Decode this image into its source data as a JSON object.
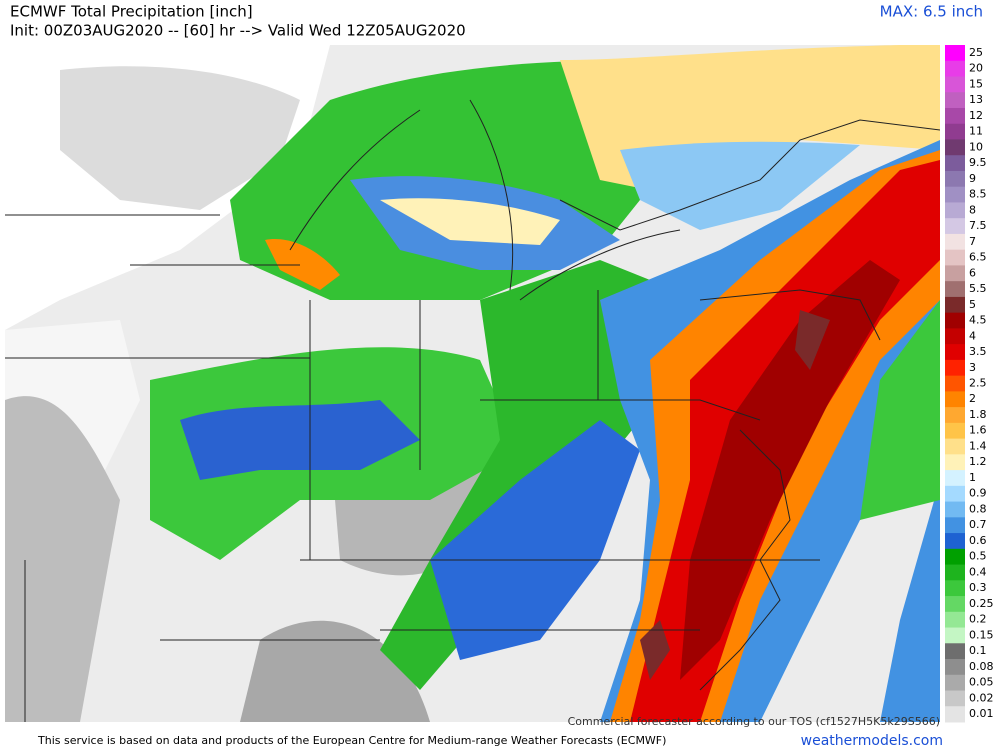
{
  "header": {
    "title": "ECMWF Total Precipitation [inch]",
    "subtitle": "Init: 00Z03AUG2020 -- [60] hr --> Valid Wed 12Z05AUG2020",
    "max": "MAX: 6.5 inch"
  },
  "colorbar": [
    {
      "label": "25",
      "color": "#ff00ff"
    },
    {
      "label": "20",
      "color": "#e83ce8"
    },
    {
      "label": "15",
      "color": "#d855d8"
    },
    {
      "label": "13",
      "color": "#c060c0"
    },
    {
      "label": "12",
      "color": "#a848a8"
    },
    {
      "label": "11",
      "color": "#903c90"
    },
    {
      "label": "10",
      "color": "#703a70"
    },
    {
      "label": "9.5",
      "color": "#7c5c9c"
    },
    {
      "label": "9",
      "color": "#8c78b0"
    },
    {
      "label": "8.5",
      "color": "#a090c4"
    },
    {
      "label": "8",
      "color": "#b8aad4"
    },
    {
      "label": "7.5",
      "color": "#d4c8e4"
    },
    {
      "label": "7",
      "color": "#f2e2e2"
    },
    {
      "label": "6.5",
      "color": "#e4c4c4"
    },
    {
      "label": "6",
      "color": "#c8a0a0"
    },
    {
      "label": "5.5",
      "color": "#a07070"
    },
    {
      "label": "5",
      "color": "#7a2a2a"
    },
    {
      "label": "4.5",
      "color": "#a00000"
    },
    {
      "label": "4",
      "color": "#c40000"
    },
    {
      "label": "3.5",
      "color": "#e00000"
    },
    {
      "label": "3",
      "color": "#ff2200"
    },
    {
      "label": "2.5",
      "color": "#ff5500"
    },
    {
      "label": "2",
      "color": "#ff8400"
    },
    {
      "label": "1.8",
      "color": "#ffa830"
    },
    {
      "label": "1.6",
      "color": "#ffc448"
    },
    {
      "label": "1.4",
      "color": "#ffe08a"
    },
    {
      "label": "1.2",
      "color": "#fff2b8"
    },
    {
      "label": "1",
      "color": "#d4f2ff"
    },
    {
      "label": "0.9",
      "color": "#a4daff"
    },
    {
      "label": "0.8",
      "color": "#72baf2"
    },
    {
      "label": "0.7",
      "color": "#4292e2"
    },
    {
      "label": "0.6",
      "color": "#1e62d2"
    },
    {
      "label": "0.5",
      "color": "#00a000"
    },
    {
      "label": "0.4",
      "color": "#1eb41e"
    },
    {
      "label": "0.3",
      "color": "#3cc83c"
    },
    {
      "label": "0.25",
      "color": "#64d864"
    },
    {
      "label": "0.2",
      "color": "#94e894"
    },
    {
      "label": "0.15",
      "color": "#c4f6c4"
    },
    {
      "label": "0.1",
      "color": "#6e6e6e"
    },
    {
      "label": "0.08",
      "color": "#8e8e8e"
    },
    {
      "label": "0.05",
      "color": "#aaaaaa"
    },
    {
      "label": "0.02",
      "color": "#c8c8c8"
    },
    {
      "label": "0.01",
      "color": "#e4e4e4"
    }
  ],
  "watermark": "Commercial forecaster according to our TOS (cf1527H5K5k29S566)",
  "footer": {
    "notice": "This service is based on data and products of the European Centre for Medium-range Weather Forecasts (ECMWF)",
    "site": "weathermodels.com"
  }
}
